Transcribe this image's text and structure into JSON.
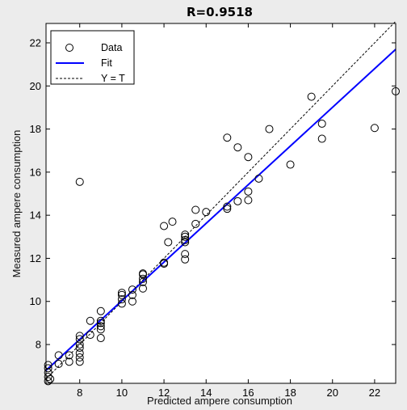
{
  "chart_data": {
    "type": "scatter",
    "title": "R=0.9518",
    "xlabel": "Predicted ampere consumption",
    "ylabel": "Measured ampere consumption",
    "xlim": [
      6.4,
      23
    ],
    "ylim": [
      6.2,
      22.9
    ],
    "xticks": [
      8,
      10,
      12,
      14,
      16,
      18,
      20,
      22
    ],
    "yticks": [
      8,
      10,
      12,
      14,
      16,
      18,
      20,
      22
    ],
    "grid": false,
    "legend_position": "top-left",
    "series": [
      {
        "name": "Data",
        "marker": "open-circle",
        "color": "#000000",
        "points": [
          [
            6.5,
            6.3
          ],
          [
            6.5,
            6.5
          ],
          [
            6.5,
            6.7
          ],
          [
            6.5,
            6.9
          ],
          [
            6.5,
            7.05
          ],
          [
            6.6,
            6.4
          ],
          [
            7.0,
            7.1
          ],
          [
            7.0,
            7.5
          ],
          [
            7.5,
            7.2
          ],
          [
            7.5,
            7.5
          ],
          [
            8.0,
            7.2
          ],
          [
            8.0,
            7.4
          ],
          [
            8.0,
            7.6
          ],
          [
            8.0,
            7.85
          ],
          [
            8.0,
            8.0
          ],
          [
            8.0,
            8.25
          ],
          [
            8.0,
            8.4
          ],
          [
            8.5,
            8.45
          ],
          [
            8.5,
            9.1
          ],
          [
            8.0,
            15.55
          ],
          [
            9.0,
            8.3
          ],
          [
            9.0,
            8.7
          ],
          [
            9.0,
            8.85
          ],
          [
            9.0,
            9.0
          ],
          [
            9.0,
            9.1
          ],
          [
            9.0,
            9.55
          ],
          [
            10.0,
            9.9
          ],
          [
            10.0,
            10.1
          ],
          [
            10.0,
            10.3
          ],
          [
            10.0,
            10.4
          ],
          [
            10.5,
            10.0
          ],
          [
            10.5,
            10.3
          ],
          [
            10.5,
            10.55
          ],
          [
            11.0,
            10.6
          ],
          [
            11.0,
            10.9
          ],
          [
            11.0,
            11.05
          ],
          [
            11.0,
            11.25
          ],
          [
            11.0,
            11.3
          ],
          [
            12.0,
            11.75
          ],
          [
            12.0,
            11.8
          ],
          [
            12.0,
            13.5
          ],
          [
            12.2,
            12.75
          ],
          [
            12.4,
            13.7
          ],
          [
            13.0,
            11.95
          ],
          [
            13.0,
            12.2
          ],
          [
            13.0,
            12.75
          ],
          [
            13.0,
            12.85
          ],
          [
            13.0,
            13.0
          ],
          [
            13.0,
            13.1
          ],
          [
            13.5,
            13.6
          ],
          [
            13.5,
            14.25
          ],
          [
            14.0,
            14.15
          ],
          [
            15.0,
            14.3
          ],
          [
            15.0,
            14.4
          ],
          [
            15.0,
            17.6
          ],
          [
            15.5,
            14.65
          ],
          [
            15.5,
            17.15
          ],
          [
            16.0,
            14.7
          ],
          [
            16.0,
            15.1
          ],
          [
            16.0,
            16.7
          ],
          [
            16.5,
            15.7
          ],
          [
            17.0,
            18.0
          ],
          [
            18.0,
            16.35
          ],
          [
            19.0,
            19.5
          ],
          [
            19.5,
            17.55
          ],
          [
            19.5,
            18.25
          ],
          [
            22.0,
            18.05
          ],
          [
            23.0,
            19.75
          ]
        ]
      },
      {
        "name": "Fit",
        "style": "solid",
        "color": "#0000ff",
        "points": [
          [
            6.4,
            6.8
          ],
          [
            23.0,
            21.7
          ]
        ]
      },
      {
        "name": "Y = T",
        "style": "dashed",
        "color": "#000000",
        "points": [
          [
            6.4,
            6.4
          ],
          [
            23.0,
            23.0
          ]
        ]
      }
    ]
  }
}
